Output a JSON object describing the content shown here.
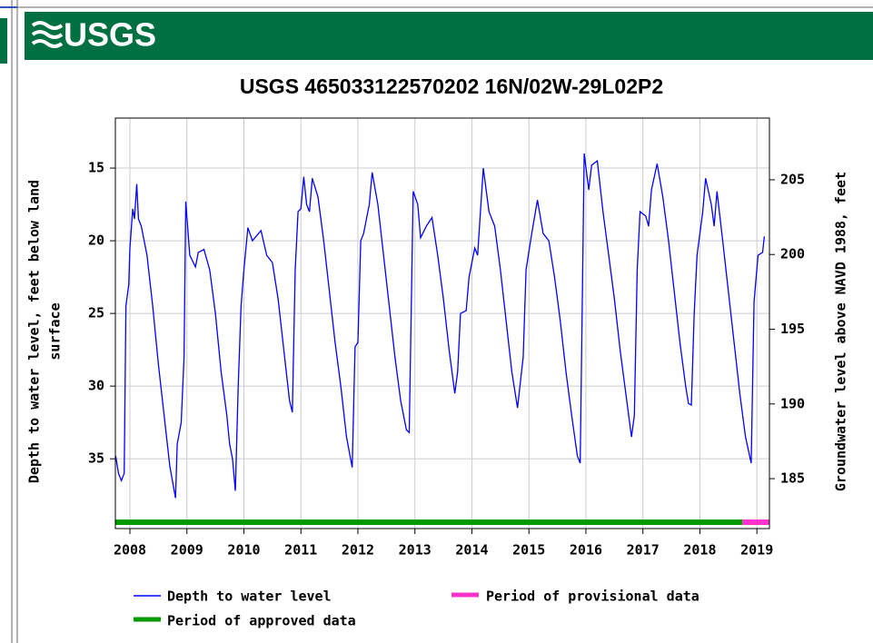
{
  "header": {
    "logo": "USGS"
  },
  "chart_data": {
    "type": "line",
    "title": "USGS 465033122570202 16N/02W-29L02P2",
    "ylabel": [
      "Depth to water level, feet below land",
      "surface"
    ],
    "y2label": "Groundwater level above NAVD 1988, feet",
    "xlim": [
      2007.745,
      2019.22
    ],
    "xticks": [
      2008,
      2009,
      2010,
      2011,
      2012,
      2013,
      2014,
      2015,
      2016,
      2017,
      2018,
      2019
    ],
    "ylim": [
      11.56,
      39.8
    ],
    "invert_y": true,
    "yticks": [
      15,
      20,
      25,
      30,
      35
    ],
    "y2lim": [
      181.66,
      209.13
    ],
    "y2ticks": [
      185,
      190,
      195,
      200,
      205
    ],
    "grid": true,
    "series": [
      {
        "name": "Depth to water level",
        "color": "#0000ff",
        "x": [
          2007.75,
          2007.8,
          2007.85,
          2007.9,
          2007.93,
          2007.98,
          2008.0,
          2008.05,
          2008.08,
          2008.12,
          2008.15,
          2008.2,
          2008.3,
          2008.4,
          2008.5,
          2008.6,
          2008.7,
          2008.8,
          2008.83,
          2008.9,
          2008.95,
          2008.98,
          2009.05,
          2009.15,
          2009.2,
          2009.3,
          2009.4,
          2009.5,
          2009.6,
          2009.7,
          2009.75,
          2009.8,
          2009.85,
          2009.9,
          2009.95,
          2010.0,
          2010.07,
          2010.15,
          2010.3,
          2010.4,
          2010.5,
          2010.6,
          2010.7,
          2010.8,
          2010.85,
          2010.9,
          2010.95,
          2011.0,
          2011.05,
          2011.1,
          2011.15,
          2011.2,
          2011.3,
          2011.4,
          2011.5,
          2011.6,
          2011.7,
          2011.8,
          2011.9,
          2011.95,
          2012.0,
          2012.05,
          2012.1,
          2012.2,
          2012.25,
          2012.35,
          2012.45,
          2012.55,
          2012.65,
          2012.75,
          2012.85,
          2012.9,
          2012.97,
          2013.05,
          2013.1,
          2013.2,
          2013.3,
          2013.4,
          2013.5,
          2013.6,
          2013.7,
          2013.75,
          2013.8,
          2013.9,
          2013.95,
          2014.05,
          2014.1,
          2014.2,
          2014.3,
          2014.4,
          2014.5,
          2014.6,
          2014.7,
          2014.8,
          2014.9,
          2014.95,
          2015.05,
          2015.15,
          2015.25,
          2015.35,
          2015.45,
          2015.55,
          2015.65,
          2015.75,
          2015.85,
          2015.9,
          2015.97,
          2016.05,
          2016.1,
          2016.2,
          2016.3,
          2016.4,
          2016.5,
          2016.6,
          2016.7,
          2016.8,
          2016.85,
          2016.9,
          2016.95,
          2017.05,
          2017.1,
          2017.15,
          2017.25,
          2017.35,
          2017.45,
          2017.55,
          2017.65,
          2017.75,
          2017.8,
          2017.85,
          2017.9,
          2017.95,
          2018.05,
          2018.1,
          2018.2,
          2018.25,
          2018.3,
          2018.4,
          2018.5,
          2018.6,
          2018.7,
          2018.8,
          2018.9,
          2018.95,
          2019.02,
          2019.1,
          2019.13
        ],
        "values": [
          34.8,
          36.0,
          36.5,
          36.0,
          24.5,
          23,
          20.5,
          17.8,
          18.5,
          16.1,
          18.5,
          19,
          21,
          24.5,
          28.5,
          32,
          35.5,
          37.7,
          34,
          32.5,
          28,
          17.3,
          21,
          21.8,
          20.8,
          20.6,
          22,
          25,
          29,
          32,
          34,
          35,
          37.2,
          30,
          24.5,
          22,
          19.1,
          20,
          19.3,
          21,
          21.5,
          24,
          27.5,
          31,
          31.8,
          22,
          18,
          17.8,
          15.6,
          17.5,
          18,
          15.7,
          17,
          20,
          23.5,
          27,
          30,
          33.5,
          35.6,
          27.3,
          27,
          20,
          19.5,
          17.5,
          15.3,
          17.5,
          21,
          24.5,
          28,
          31,
          33,
          33.2,
          16.6,
          17.5,
          19.8,
          19,
          18.4,
          21,
          24,
          27.5,
          30.5,
          29,
          25,
          24.8,
          22.5,
          20.5,
          21,
          15,
          18,
          19,
          22,
          25.5,
          29,
          31.5,
          28,
          22,
          19.5,
          17.2,
          19.5,
          20,
          22.5,
          25.5,
          29,
          32,
          34.8,
          35.3,
          14,
          16.5,
          14.8,
          14.5,
          18,
          21,
          24,
          27.5,
          30.5,
          33.5,
          32,
          22,
          18,
          18.3,
          19,
          16.5,
          14.7,
          17,
          20,
          23.5,
          27,
          30,
          31.2,
          31.3,
          25,
          21,
          18,
          15.7,
          17.5,
          19,
          16.6,
          20,
          23.5,
          27,
          30.5,
          33.5,
          35.3,
          24.2,
          21,
          20.8,
          19.7
        ]
      }
    ],
    "periods": [
      {
        "name": "Period of approved data",
        "color": "#009900",
        "start": 2007.745,
        "end": 2018.745
      },
      {
        "name": "Period of provisional data",
        "color": "#ff33cc",
        "start": 2018.745,
        "end": 2019.22
      }
    ]
  }
}
